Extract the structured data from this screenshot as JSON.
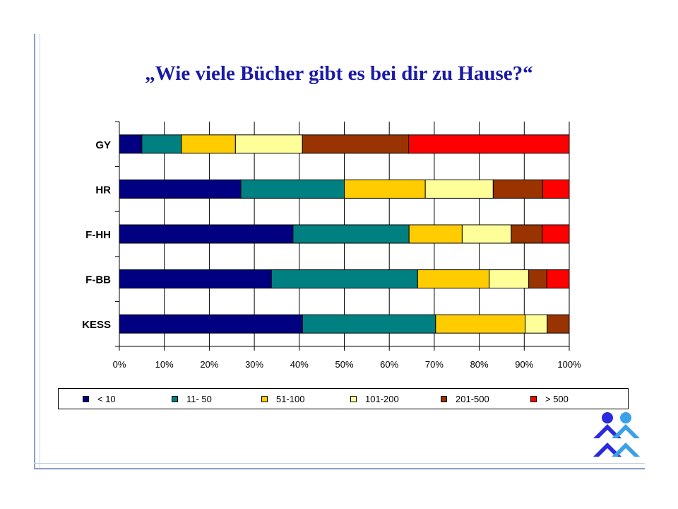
{
  "slide": {
    "title": "„Wie viele Bücher gibt es bei dir zu Hause?“"
  },
  "chart_data": {
    "type": "bar",
    "orientation": "horizontal",
    "stacked": "percent",
    "categories": [
      "GY",
      "HR",
      "F-HH",
      "F-BB",
      "KESS"
    ],
    "x_ticks": [
      "0%",
      "10%",
      "20%",
      "30%",
      "40%",
      "50%",
      "60%",
      "70%",
      "80%",
      "90%",
      "100%"
    ],
    "xlim": [
      0,
      100
    ],
    "grid": "vertical",
    "legend_position": "bottom",
    "series": [
      {
        "name": "< 10",
        "color": "#000080",
        "values": [
          5,
          27,
          38.6,
          33.8,
          40.7
        ]
      },
      {
        "name": "11- 50",
        "color": "#008080",
        "values": [
          8.8,
          23,
          25.8,
          32.5,
          29.6
        ]
      },
      {
        "name": "51-100",
        "color": "#ffcc00",
        "values": [
          12,
          18,
          11.8,
          15.9,
          19.9
        ]
      },
      {
        "name": "101-200",
        "color": "#ffff99",
        "values": [
          14.9,
          15.1,
          10.9,
          8.8,
          4.9
        ]
      },
      {
        "name": "201-500",
        "color": "#993300",
        "values": [
          23.6,
          11,
          6.9,
          4,
          4.9
        ]
      },
      {
        "name": "> 500",
        "color": "#ff0000",
        "values": [
          35.7,
          5.9,
          6,
          5,
          0
        ]
      }
    ]
  }
}
